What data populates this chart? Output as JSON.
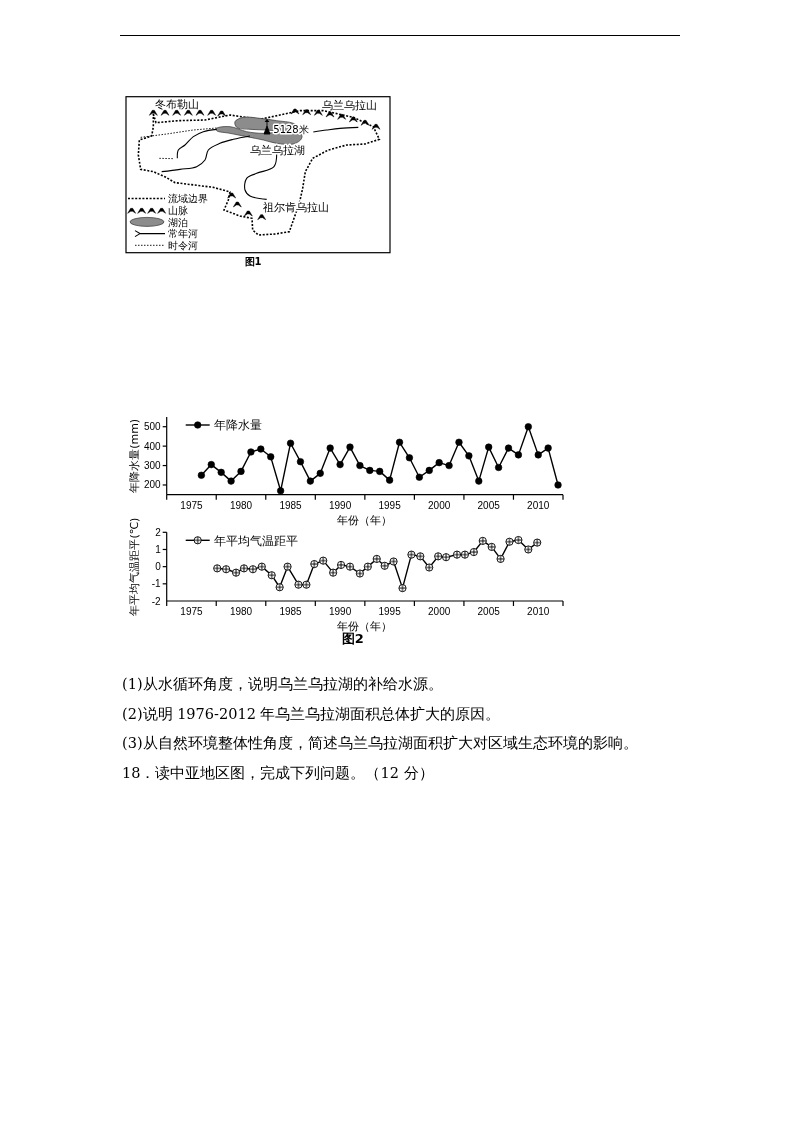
{
  "chart_data": [
    {
      "type": "other",
      "annotations": [
        "冬布勒山",
        "乌兰乌拉山",
        "5128米",
        "乌兰乌拉湖",
        "祖尔肯乌拉山",
        "流域边界",
        "山脉",
        "湖泊",
        "常年河",
        "时令河",
        "图1"
      ]
    },
    {
      "type": "line",
      "x": [
        1976,
        1977,
        1978,
        1979,
        1980,
        1981,
        1982,
        1983,
        1984,
        1985,
        1986,
        1987,
        1988,
        1989,
        1990,
        1991,
        1992,
        1993,
        1994,
        1995,
        1996,
        1997,
        1998,
        1999,
        2000,
        2001,
        2002,
        2003,
        2004,
        2005,
        2006,
        2007,
        2008,
        2009,
        2010,
        2011,
        2012
      ],
      "series": [
        {
          "name": "年降水量",
          "color": "#000000",
          "values": [
            250,
            305,
            265,
            220,
            270,
            370,
            385,
            345,
            170,
            415,
            320,
            220,
            260,
            390,
            305,
            395,
            300,
            275,
            270,
            225,
            420,
            340,
            240,
            275,
            315,
            300,
            420,
            350,
            220,
            395,
            290,
            390,
            355,
            500,
            355,
            390,
            200
          ]
        }
      ],
      "xlim": [
        1972.5,
        2012.5
      ],
      "xticks": [
        {
          "value": 1972.5,
          "label": null
        },
        1975,
        {
          "value": 1977.5,
          "label": null
        },
        1980,
        {
          "value": 1982.5,
          "label": null
        },
        1985,
        {
          "value": 1987.5,
          "label": null
        },
        1990,
        {
          "value": 1992.5,
          "label": null
        },
        1995,
        {
          "value": 1997.5,
          "label": null
        },
        2000,
        {
          "value": 2002.5,
          "label": null
        },
        2005,
        {
          "value": 2007.5,
          "label": null
        },
        2010,
        {
          "value": 2012.5,
          "label": null
        }
      ],
      "ylim": [
        150,
        550
      ],
      "yticks": [
        200,
        300,
        400,
        500
      ],
      "xlabel": "年份（年）",
      "ylabel": "年降水量(mm)",
      "legend": "top left",
      "marker": "circle",
      "line_style": "solid"
    },
    {
      "type": "line",
      "x": [
        1977.6,
        1978.5,
        1979.5,
        1980.3,
        1981.2,
        1982.1,
        1983.1,
        1983.9,
        1984.7,
        1985.8,
        1986.6,
        1987.4,
        1988.3,
        1989.3,
        1990.1,
        1991.0,
        1992.0,
        1992.8,
        1993.7,
        1994.5,
        1995.4,
        1996.3,
        1997.2,
        1998.1,
        1999.0,
        1999.9,
        2000.7,
        2001.8,
        2002.6,
        2003.5,
        2004.4,
        2005.3,
        2006.2,
        2007.1,
        2008.0,
        2009.0,
        2009.9
      ],
      "series": [
        {
          "name": "年平均气温距平",
          "color": "#000000",
          "values": [
            -0.1,
            -0.15,
            -0.35,
            -0.1,
            -0.15,
            0.0,
            -0.5,
            -1.2,
            0.0,
            -1.05,
            -1.05,
            0.15,
            0.35,
            -0.35,
            0.1,
            0.0,
            -0.4,
            0.0,
            0.45,
            0.05,
            0.3,
            -1.25,
            0.7,
            0.6,
            -0.05,
            0.6,
            0.55,
            0.7,
            0.7,
            0.85,
            1.5,
            1.15,
            0.45,
            1.45,
            1.55,
            1.0,
            1.4
          ]
        }
      ],
      "xlim": [
        1972.5,
        2012.5
      ],
      "xticks": [
        {
          "value": 1972.5,
          "label": null
        },
        1975,
        {
          "value": 1977.5,
          "label": null
        },
        1980,
        {
          "value": 1982.5,
          "label": null
        },
        1985,
        {
          "value": 1987.5,
          "label": null
        },
        1990,
        {
          "value": 1992.5,
          "label": null
        },
        1995,
        {
          "value": 1997.5,
          "label": null
        },
        2000,
        {
          "value": 2002.5,
          "label": null
        },
        2005,
        {
          "value": 2007.5,
          "label": null
        },
        2010,
        {
          "value": 2012.5,
          "label": null
        }
      ],
      "ylim": [
        -2,
        2
      ],
      "yticks": [
        -2,
        -1,
        0,
        1,
        2
      ],
      "xlabel": "年份（年）",
      "ylabel": "年平均气温距平(℃)",
      "legend": "top left",
      "marker": "circle",
      "line_style": "solid",
      "annotations": [
        "图2"
      ]
    },
    {
      "type": "other",
      "annotations": [
        "(1)从水循环角度，说明乌兰乌拉湖的补给水源。",
        "(2)说明 1976-2012 年乌兰乌拉湖面积总体扩大的原因。",
        "(3)从自然环境整体性角度，简述乌兰乌拉湖面积扩大对区域生态环境的影响。",
        "18．读中亚地区图，完成下列问题。（12 分）"
      ]
    }
  ]
}
